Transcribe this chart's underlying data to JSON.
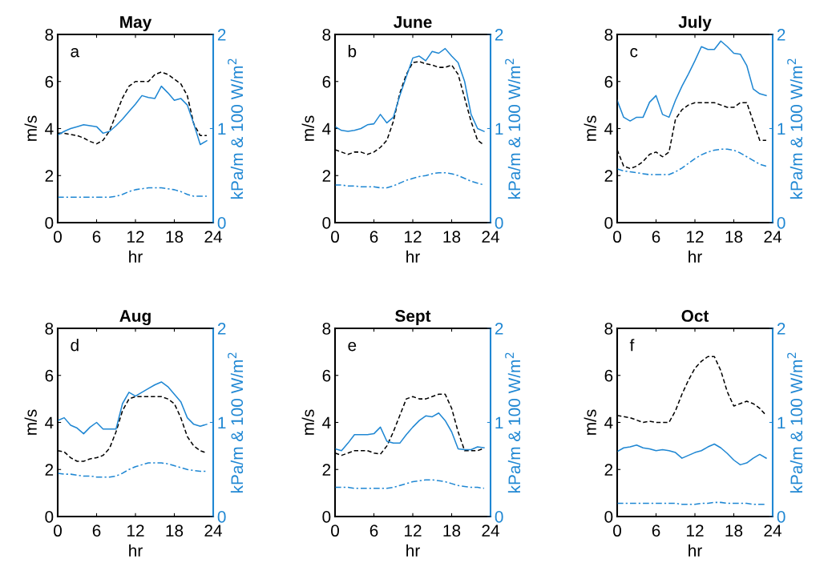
{
  "chart_data": [
    {
      "type": "line",
      "title": "May",
      "xlabel": "hr",
      "ylabel": "m/s",
      "y2label": "kPa/m & 100 W/m$^{2}$",
      "annotations": [
        "a"
      ],
      "x": [
        0,
        1,
        2,
        3,
        4,
        5,
        6,
        7,
        8,
        9,
        10,
        11,
        12,
        13,
        14,
        15,
        16,
        17,
        18,
        19,
        20,
        21,
        22,
        23
      ],
      "xlim": [
        0,
        24
      ],
      "xticks": [
        0,
        6,
        12,
        18,
        24
      ],
      "ylim": [
        0,
        8
      ],
      "yticks": [
        0,
        2,
        4,
        6,
        8
      ],
      "y2lim": [
        0,
        2
      ],
      "y2ticks": [
        0,
        1,
        2
      ],
      "series": [
        {
          "color": "#000000",
          "line_style": "dashed",
          "values": [
            3.8,
            3.8,
            3.75,
            3.7,
            3.6,
            3.45,
            3.35,
            3.5,
            3.9,
            4.6,
            5.3,
            5.8,
            6.0,
            6.0,
            6.0,
            6.3,
            6.4,
            6.3,
            6.1,
            5.9,
            5.4,
            4.2,
            3.7,
            3.7
          ]
        },
        {
          "color": "#1f87d3",
          "line_style": "solid",
          "axis": "y2",
          "values": [
            0.93,
            0.97,
            1.0,
            1.02,
            1.04,
            1.03,
            1.02,
            0.95,
            0.97,
            1.03,
            1.1,
            1.18,
            1.26,
            1.35,
            1.33,
            1.32,
            1.45,
            1.38,
            1.3,
            1.32,
            1.25,
            1.05,
            0.83,
            0.87
          ]
        },
        {
          "color": "#1f87d3",
          "line_style": "dashdot",
          "axis": "y2",
          "values": [
            0.27,
            0.27,
            0.27,
            0.27,
            0.27,
            0.27,
            0.27,
            0.27,
            0.27,
            0.28,
            0.3,
            0.33,
            0.35,
            0.36,
            0.37,
            0.37,
            0.37,
            0.36,
            0.35,
            0.33,
            0.3,
            0.28,
            0.28,
            0.28
          ]
        }
      ]
    },
    {
      "type": "line",
      "title": "June",
      "xlabel": "hr",
      "ylabel": "m/s",
      "y2label": "kPa/m & 100 W/m$^{2}$",
      "annotations": [
        "b"
      ],
      "x": [
        0,
        1,
        2,
        3,
        4,
        5,
        6,
        7,
        8,
        9,
        10,
        11,
        12,
        13,
        14,
        15,
        16,
        17,
        18,
        19,
        20,
        21,
        22,
        23
      ],
      "xlim": [
        0,
        24
      ],
      "xticks": [
        0,
        6,
        12,
        18,
        24
      ],
      "ylim": [
        0,
        8
      ],
      "yticks": [
        0,
        2,
        4,
        6,
        8
      ],
      "y2lim": [
        0,
        2
      ],
      "y2ticks": [
        0,
        1,
        2
      ],
      "series": [
        {
          "color": "#000000",
          "line_style": "dashed",
          "values": [
            3.1,
            3.0,
            2.9,
            3.0,
            3.0,
            2.9,
            3.0,
            3.2,
            3.5,
            4.3,
            5.5,
            6.3,
            6.8,
            6.85,
            6.75,
            6.7,
            6.6,
            6.6,
            6.7,
            6.3,
            5.3,
            4.3,
            3.5,
            3.3
          ]
        },
        {
          "color": "#1f87d3",
          "line_style": "solid",
          "axis": "y2",
          "values": [
            1.02,
            0.98,
            0.97,
            0.98,
            1.0,
            1.04,
            1.05,
            1.15,
            1.06,
            1.12,
            1.35,
            1.55,
            1.75,
            1.77,
            1.72,
            1.82,
            1.8,
            1.85,
            1.77,
            1.7,
            1.5,
            1.15,
            1.0,
            0.97
          ]
        },
        {
          "color": "#1f87d3",
          "line_style": "dashdot",
          "axis": "y2",
          "values": [
            0.4,
            0.4,
            0.39,
            0.39,
            0.38,
            0.38,
            0.38,
            0.37,
            0.37,
            0.39,
            0.42,
            0.45,
            0.47,
            0.49,
            0.5,
            0.52,
            0.53,
            0.53,
            0.52,
            0.5,
            0.47,
            0.44,
            0.42,
            0.4
          ]
        }
      ]
    },
    {
      "type": "line",
      "title": "July",
      "xlabel": "hr",
      "ylabel": "m/s",
      "y2label": "kPa/m & 100 W/m$^{2}$",
      "annotations": [
        "c"
      ],
      "x": [
        0,
        1,
        2,
        3,
        4,
        5,
        6,
        7,
        8,
        9,
        10,
        11,
        12,
        13,
        14,
        15,
        16,
        17,
        18,
        19,
        20,
        21,
        22,
        23
      ],
      "xlim": [
        0,
        24
      ],
      "xticks": [
        0,
        6,
        12,
        18,
        24
      ],
      "ylim": [
        0,
        8
      ],
      "yticks": [
        0,
        2,
        4,
        6,
        8
      ],
      "y2lim": [
        0,
        2
      ],
      "y2ticks": [
        0,
        1,
        2
      ],
      "series": [
        {
          "color": "#000000",
          "line_style": "dashed",
          "values": [
            3.1,
            2.4,
            2.3,
            2.4,
            2.6,
            2.9,
            3.0,
            2.8,
            3.0,
            4.4,
            4.8,
            5.0,
            5.1,
            5.1,
            5.1,
            5.1,
            5.0,
            4.9,
            4.9,
            5.1,
            5.1,
            4.3,
            3.5,
            3.5
          ]
        },
        {
          "color": "#1f87d3",
          "line_style": "solid",
          "axis": "y2",
          "values": [
            1.3,
            1.12,
            1.08,
            1.12,
            1.12,
            1.28,
            1.35,
            1.15,
            1.12,
            1.3,
            1.45,
            1.58,
            1.72,
            1.87,
            1.84,
            1.84,
            1.93,
            1.87,
            1.8,
            1.79,
            1.67,
            1.42,
            1.37,
            1.35
          ]
        },
        {
          "color": "#1f87d3",
          "line_style": "dashdot",
          "axis": "y2",
          "values": [
            0.57,
            0.55,
            0.54,
            0.53,
            0.52,
            0.51,
            0.51,
            0.51,
            0.51,
            0.54,
            0.58,
            0.63,
            0.68,
            0.72,
            0.75,
            0.77,
            0.78,
            0.78,
            0.77,
            0.74,
            0.7,
            0.66,
            0.62,
            0.6
          ]
        }
      ]
    },
    {
      "type": "line",
      "title": "Aug",
      "xlabel": "hr",
      "ylabel": "m/s",
      "y2label": "kPa/m & 100 W/m$^{2}$",
      "annotations": [
        "d"
      ],
      "x": [
        0,
        1,
        2,
        3,
        4,
        5,
        6,
        7,
        8,
        9,
        10,
        11,
        12,
        13,
        14,
        15,
        16,
        17,
        18,
        19,
        20,
        21,
        22,
        23
      ],
      "xlim": [
        0,
        24
      ],
      "xticks": [
        0,
        6,
        12,
        18,
        24
      ],
      "ylim": [
        0,
        8
      ],
      "yticks": [
        0,
        2,
        4,
        6,
        8
      ],
      "y2lim": [
        0,
        2
      ],
      "y2ticks": [
        0,
        1,
        2
      ],
      "series": [
        {
          "color": "#000000",
          "line_style": "dashed",
          "values": [
            2.8,
            2.75,
            2.5,
            2.35,
            2.35,
            2.45,
            2.5,
            2.6,
            2.9,
            3.6,
            4.5,
            5.0,
            5.1,
            5.1,
            5.1,
            5.1,
            5.1,
            5.0,
            4.8,
            4.2,
            3.4,
            3.0,
            2.8,
            2.7
          ]
        },
        {
          "color": "#1f87d3",
          "line_style": "solid",
          "axis": "y2",
          "values": [
            1.02,
            1.05,
            0.97,
            0.94,
            0.88,
            0.95,
            1.0,
            0.93,
            0.93,
            0.93,
            1.2,
            1.32,
            1.28,
            1.32,
            1.36,
            1.4,
            1.43,
            1.38,
            1.3,
            1.22,
            1.05,
            0.98,
            0.96,
            0.98
          ]
        },
        {
          "color": "#1f87d3",
          "line_style": "dashdot",
          "axis": "y2",
          "values": [
            0.46,
            0.45,
            0.45,
            0.44,
            0.43,
            0.43,
            0.42,
            0.42,
            0.42,
            0.43,
            0.46,
            0.5,
            0.53,
            0.55,
            0.57,
            0.57,
            0.57,
            0.56,
            0.54,
            0.52,
            0.5,
            0.49,
            0.48,
            0.48
          ]
        }
      ]
    },
    {
      "type": "line",
      "title": "Sept",
      "xlabel": "hr",
      "ylabel": "m/s",
      "y2label": "kPa/m & 100 W/m$^{2}$",
      "annotations": [
        "e"
      ],
      "x": [
        0,
        1,
        2,
        3,
        4,
        5,
        6,
        7,
        8,
        9,
        10,
        11,
        12,
        13,
        14,
        15,
        16,
        17,
        18,
        19,
        20,
        21,
        22,
        23
      ],
      "xlim": [
        0,
        24
      ],
      "xticks": [
        0,
        6,
        12,
        18,
        24
      ],
      "ylim": [
        0,
        8
      ],
      "yticks": [
        0,
        2,
        4,
        6,
        8
      ],
      "y2lim": [
        0,
        2
      ],
      "y2ticks": [
        0,
        1,
        2
      ],
      "series": [
        {
          "color": "#000000",
          "line_style": "dashed",
          "values": [
            2.7,
            2.6,
            2.7,
            2.8,
            2.8,
            2.8,
            2.7,
            2.65,
            3.0,
            3.6,
            4.3,
            5.0,
            5.1,
            5.0,
            5.0,
            5.1,
            5.2,
            5.2,
            4.6,
            3.6,
            2.8,
            2.8,
            2.8,
            2.9
          ]
        },
        {
          "color": "#1f87d3",
          "line_style": "solid",
          "axis": "y2",
          "values": [
            0.72,
            0.7,
            0.78,
            0.87,
            0.87,
            0.87,
            0.88,
            0.95,
            0.8,
            0.78,
            0.78,
            0.87,
            0.95,
            1.02,
            1.07,
            1.06,
            1.1,
            1.02,
            0.9,
            0.72,
            0.71,
            0.71,
            0.74,
            0.73
          ]
        },
        {
          "color": "#1f87d3",
          "line_style": "dashdot",
          "axis": "y2",
          "values": [
            0.31,
            0.31,
            0.31,
            0.3,
            0.3,
            0.3,
            0.3,
            0.3,
            0.3,
            0.31,
            0.33,
            0.35,
            0.37,
            0.38,
            0.39,
            0.39,
            0.38,
            0.37,
            0.35,
            0.33,
            0.32,
            0.31,
            0.31,
            0.3
          ]
        }
      ]
    },
    {
      "type": "line",
      "title": "Oct",
      "xlabel": "hr",
      "ylabel": "m/s",
      "y2label": "kPa/m & 100 W/m$^{2}$",
      "annotations": [
        "f"
      ],
      "x": [
        0,
        1,
        2,
        3,
        4,
        5,
        6,
        7,
        8,
        9,
        10,
        11,
        12,
        13,
        14,
        15,
        16,
        17,
        18,
        19,
        20,
        21,
        22,
        23
      ],
      "xlim": [
        0,
        24
      ],
      "xticks": [
        0,
        6,
        12,
        18,
        24
      ],
      "ylim": [
        0,
        8
      ],
      "yticks": [
        0,
        2,
        4,
        6,
        8
      ],
      "y2lim": [
        0,
        2
      ],
      "y2ticks": [
        0,
        1,
        2
      ],
      "series": [
        {
          "color": "#000000",
          "line_style": "dashed",
          "values": [
            4.3,
            4.25,
            4.2,
            4.1,
            4.0,
            4.05,
            4.0,
            4.0,
            4.0,
            4.5,
            5.2,
            5.8,
            6.3,
            6.6,
            6.8,
            6.8,
            6.2,
            5.3,
            4.7,
            4.8,
            4.9,
            4.8,
            4.6,
            4.3
          ]
        },
        {
          "color": "#1f87d3",
          "line_style": "solid",
          "axis": "y2",
          "values": [
            0.69,
            0.73,
            0.74,
            0.76,
            0.73,
            0.72,
            0.7,
            0.71,
            0.7,
            0.68,
            0.62,
            0.65,
            0.68,
            0.7,
            0.74,
            0.77,
            0.73,
            0.67,
            0.6,
            0.55,
            0.57,
            0.62,
            0.66,
            0.62
          ]
        },
        {
          "color": "#1f87d3",
          "line_style": "dashdot",
          "axis": "y2",
          "values": [
            0.14,
            0.14,
            0.14,
            0.14,
            0.14,
            0.14,
            0.14,
            0.14,
            0.14,
            0.14,
            0.13,
            0.13,
            0.13,
            0.14,
            0.14,
            0.15,
            0.15,
            0.14,
            0.14,
            0.14,
            0.14,
            0.13,
            0.13,
            0.13
          ]
        }
      ]
    }
  ]
}
